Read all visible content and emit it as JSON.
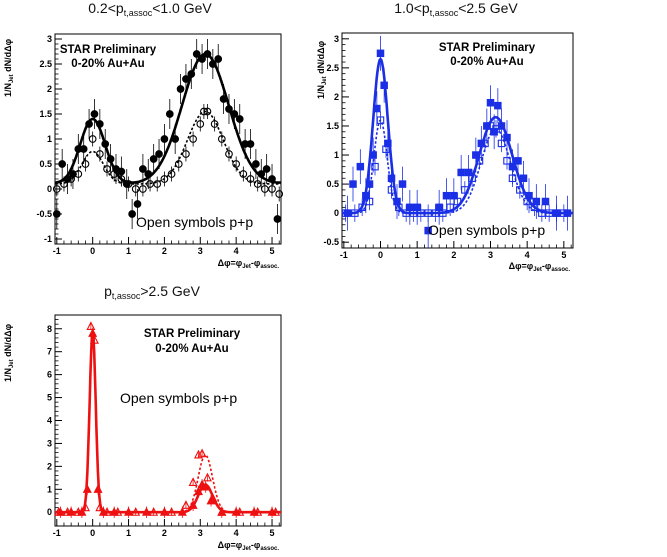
{
  "figure": {
    "star_label": "STAR Preliminary",
    "centrality_label": "0-20% Au+Au",
    "open_symbols_label": "Open symbols p+p",
    "ylabel": "1/N_Jet dN/dΔφ",
    "xlabel": "Δφ=φ_Jet-φ_assoc."
  },
  "chart_data": [
    {
      "id": "low",
      "type": "scatter",
      "title": "0.2<p_t,assoc<1.0 GeV",
      "xlabel": "Δφ=φ_Jet-φ_assoc.",
      "ylabel": "1/N_Jet dN/dΔφ",
      "xlim": [
        -1.05,
        5.25
      ],
      "ylim": [
        -1.1,
        3.1
      ],
      "xticks": [
        -1,
        0,
        1,
        2,
        3,
        4,
        5
      ],
      "yticks": [
        -1,
        -0.5,
        0,
        0.5,
        1,
        1.5,
        2,
        2.5,
        3
      ],
      "color": "#000000",
      "fit_auau": {
        "base": 0.1,
        "a1": 1.3,
        "w1": 0.35,
        "a2": 2.6,
        "w2": 0.65
      },
      "fit_pp": {
        "base": 0.1,
        "a1": 0.65,
        "w1": 0.3,
        "a2": 1.45,
        "w2": 0.5
      },
      "series": [
        {
          "name": "Au+Au",
          "marker": "filled-circle",
          "x": [
            -1.0,
            -0.85,
            -0.7,
            -0.55,
            -0.4,
            -0.25,
            -0.1,
            0.05,
            0.2,
            0.35,
            0.5,
            0.65,
            0.8,
            0.95,
            1.1,
            1.25,
            1.4,
            1.55,
            1.7,
            1.85,
            2.0,
            2.15,
            2.3,
            2.45,
            2.6,
            2.75,
            2.9,
            3.05,
            3.2,
            3.35,
            3.5,
            3.65,
            3.8,
            3.95,
            4.1,
            4.25,
            4.4,
            4.55,
            4.7,
            4.85,
            5.0,
            5.15
          ],
          "y": [
            -0.5,
            0.5,
            0.2,
            0.3,
            0.8,
            0.8,
            1.3,
            1.5,
            1.3,
            0.9,
            0.6,
            0.4,
            0.35,
            0.1,
            -0.5,
            -0.3,
            0.4,
            0.3,
            0.6,
            0.7,
            1.0,
            1.5,
            1.0,
            2.0,
            2.2,
            2.3,
            2.7,
            2.6,
            2.7,
            2.5,
            2.6,
            1.8,
            1.6,
            1.5,
            1.4,
            0.9,
            0.9,
            0.5,
            0.3,
            0.4,
            0.2,
            -0.6
          ]
        },
        {
          "name": "p+p",
          "marker": "open-circle",
          "x": [
            -1.0,
            -0.8,
            -0.6,
            -0.4,
            -0.2,
            0.0,
            0.2,
            0.4,
            0.6,
            0.8,
            1.0,
            1.2,
            1.4,
            1.6,
            1.8,
            2.0,
            2.2,
            2.4,
            2.6,
            2.8,
            3.0,
            3.1,
            3.2,
            3.4,
            3.6,
            3.8,
            4.0,
            4.2,
            4.4,
            4.6,
            4.8,
            5.0,
            5.2
          ],
          "y": [
            0.0,
            0.1,
            0.2,
            0.3,
            0.5,
            1.0,
            0.7,
            0.4,
            0.3,
            0.2,
            0.1,
            0.0,
            0.0,
            0.1,
            0.1,
            0.2,
            0.3,
            0.5,
            0.7,
            1.0,
            1.3,
            1.55,
            1.55,
            1.3,
            1.0,
            0.7,
            0.5,
            0.3,
            0.2,
            0.1,
            0.0,
            0.0,
            -0.1
          ]
        }
      ]
    },
    {
      "id": "mid",
      "type": "scatter",
      "title": "1.0<p_t,assoc<2.5 GeV",
      "xlabel": "Δφ=φ_Jet-φ_assoc.",
      "ylabel": "1/N_Jet dN/dΔφ",
      "xlim": [
        -1.05,
        5.25
      ],
      "ylim": [
        -0.6,
        3.1
      ],
      "xticks": [
        -1,
        0,
        1,
        2,
        3,
        4,
        5
      ],
      "yticks": [
        -0.5,
        0,
        0.5,
        1,
        1.5,
        2,
        2.5,
        3
      ],
      "color": "#1a2fe6",
      "fit_auau": {
        "base": 0.0,
        "a1": 2.65,
        "w1": 0.2,
        "a2": 1.65,
        "w2": 0.45
      },
      "fit_pp": {
        "base": 0.0,
        "a1": 1.6,
        "w1": 0.18,
        "a2": 1.45,
        "w2": 0.4
      },
      "series": [
        {
          "name": "Au+Au",
          "marker": "filled-square",
          "x": [
            -0.9,
            -0.75,
            -0.55,
            -0.4,
            -0.3,
            -0.2,
            -0.1,
            0.0,
            0.1,
            0.2,
            0.3,
            0.45,
            0.6,
            0.8,
            1.0,
            1.3,
            1.6,
            1.8,
            2.0,
            2.2,
            2.4,
            2.6,
            2.75,
            2.9,
            3.0,
            3.1,
            3.2,
            3.3,
            3.45,
            3.6,
            3.75,
            3.9,
            4.05,
            4.25,
            4.5,
            4.8,
            5.1
          ],
          "y": [
            0.0,
            0.5,
            0.8,
            0.3,
            0.5,
            1.0,
            1.8,
            2.75,
            2.2,
            1.2,
            0.6,
            0.2,
            0.5,
            0.1,
            0.1,
            -0.3,
            0.1,
            0.3,
            0.3,
            0.7,
            0.7,
            1.0,
            1.2,
            1.5,
            1.9,
            1.4,
            1.85,
            1.5,
            1.3,
            0.8,
            0.9,
            0.6,
            0.3,
            0.2,
            0.2,
            0.0,
            0.0
          ]
        },
        {
          "name": "p+p",
          "marker": "open-square",
          "x": [
            -0.95,
            -0.7,
            -0.5,
            -0.3,
            -0.15,
            0.0,
            0.15,
            0.3,
            0.5,
            0.7,
            0.9,
            1.1,
            1.3,
            1.5,
            1.7,
            1.9,
            2.1,
            2.3,
            2.5,
            2.7,
            2.85,
            3.0,
            3.15,
            3.3,
            3.45,
            3.6,
            3.8,
            4.0,
            4.2,
            4.4,
            4.6,
            4.8,
            5.0
          ],
          "y": [
            0.0,
            0.0,
            0.1,
            0.2,
            0.8,
            1.6,
            1.1,
            0.4,
            0.1,
            0.0,
            0.0,
            0.0,
            0.0,
            0.0,
            0.0,
            0.1,
            0.2,
            0.4,
            0.6,
            0.9,
            1.2,
            1.5,
            1.45,
            1.2,
            0.9,
            0.6,
            0.4,
            0.2,
            0.1,
            0.0,
            0.0,
            0.0,
            0.0
          ]
        }
      ]
    },
    {
      "id": "high",
      "type": "scatter",
      "title": "p_t,assoc>2.5 GeV",
      "xlabel": "Δφ=φ_Jet-φ_assoc.",
      "ylabel": "1/N_Jet dN/dΔφ",
      "xlim": [
        -1.05,
        5.25
      ],
      "ylim": [
        -0.6,
        8.6
      ],
      "xticks": [
        -1,
        0,
        1,
        2,
        3,
        4,
        5
      ],
      "yticks": [
        0,
        1,
        2,
        3,
        4,
        5,
        6,
        7,
        8
      ],
      "color": "#ee1111",
      "fit_auau": {
        "base": 0.0,
        "a1": 7.9,
        "w1": 0.085,
        "a2": 1.2,
        "w2": 0.2
      },
      "fit_pp": {
        "base": 0.0,
        "a1": 8.0,
        "w1": 0.085,
        "a2": 2.5,
        "w2": 0.2
      },
      "series": [
        {
          "name": "Au+Au",
          "marker": "filled-triangle",
          "x": [
            -0.9,
            -0.6,
            -0.3,
            -0.15,
            0.0,
            0.15,
            0.3,
            0.6,
            1.0,
            1.5,
            2.0,
            2.5,
            2.8,
            2.95,
            3.05,
            3.15,
            3.3,
            3.6,
            4.0,
            4.5,
            5.0
          ],
          "y": [
            0.0,
            0.0,
            0.0,
            1.0,
            7.8,
            1.0,
            0.0,
            0.0,
            0.0,
            0.0,
            0.0,
            0.0,
            0.3,
            0.9,
            1.2,
            1.1,
            0.5,
            0.0,
            0.0,
            0.0,
            0.0
          ]
        },
        {
          "name": "p+p",
          "marker": "open-triangle",
          "x": [
            -0.95,
            -0.7,
            -0.4,
            -0.2,
            -0.05,
            0.05,
            0.2,
            0.4,
            0.7,
            1.2,
            1.7,
            2.2,
            2.6,
            2.8,
            2.95,
            3.05,
            3.2,
            3.35,
            3.6,
            4.1,
            4.6,
            5.1
          ],
          "y": [
            0.0,
            0.0,
            0.0,
            0.2,
            8.1,
            7.5,
            0.2,
            0.0,
            0.0,
            0.0,
            0.0,
            0.0,
            0.3,
            1.3,
            2.5,
            2.55,
            1.5,
            0.6,
            0.0,
            0.0,
            0.0,
            0.0
          ]
        }
      ]
    }
  ]
}
